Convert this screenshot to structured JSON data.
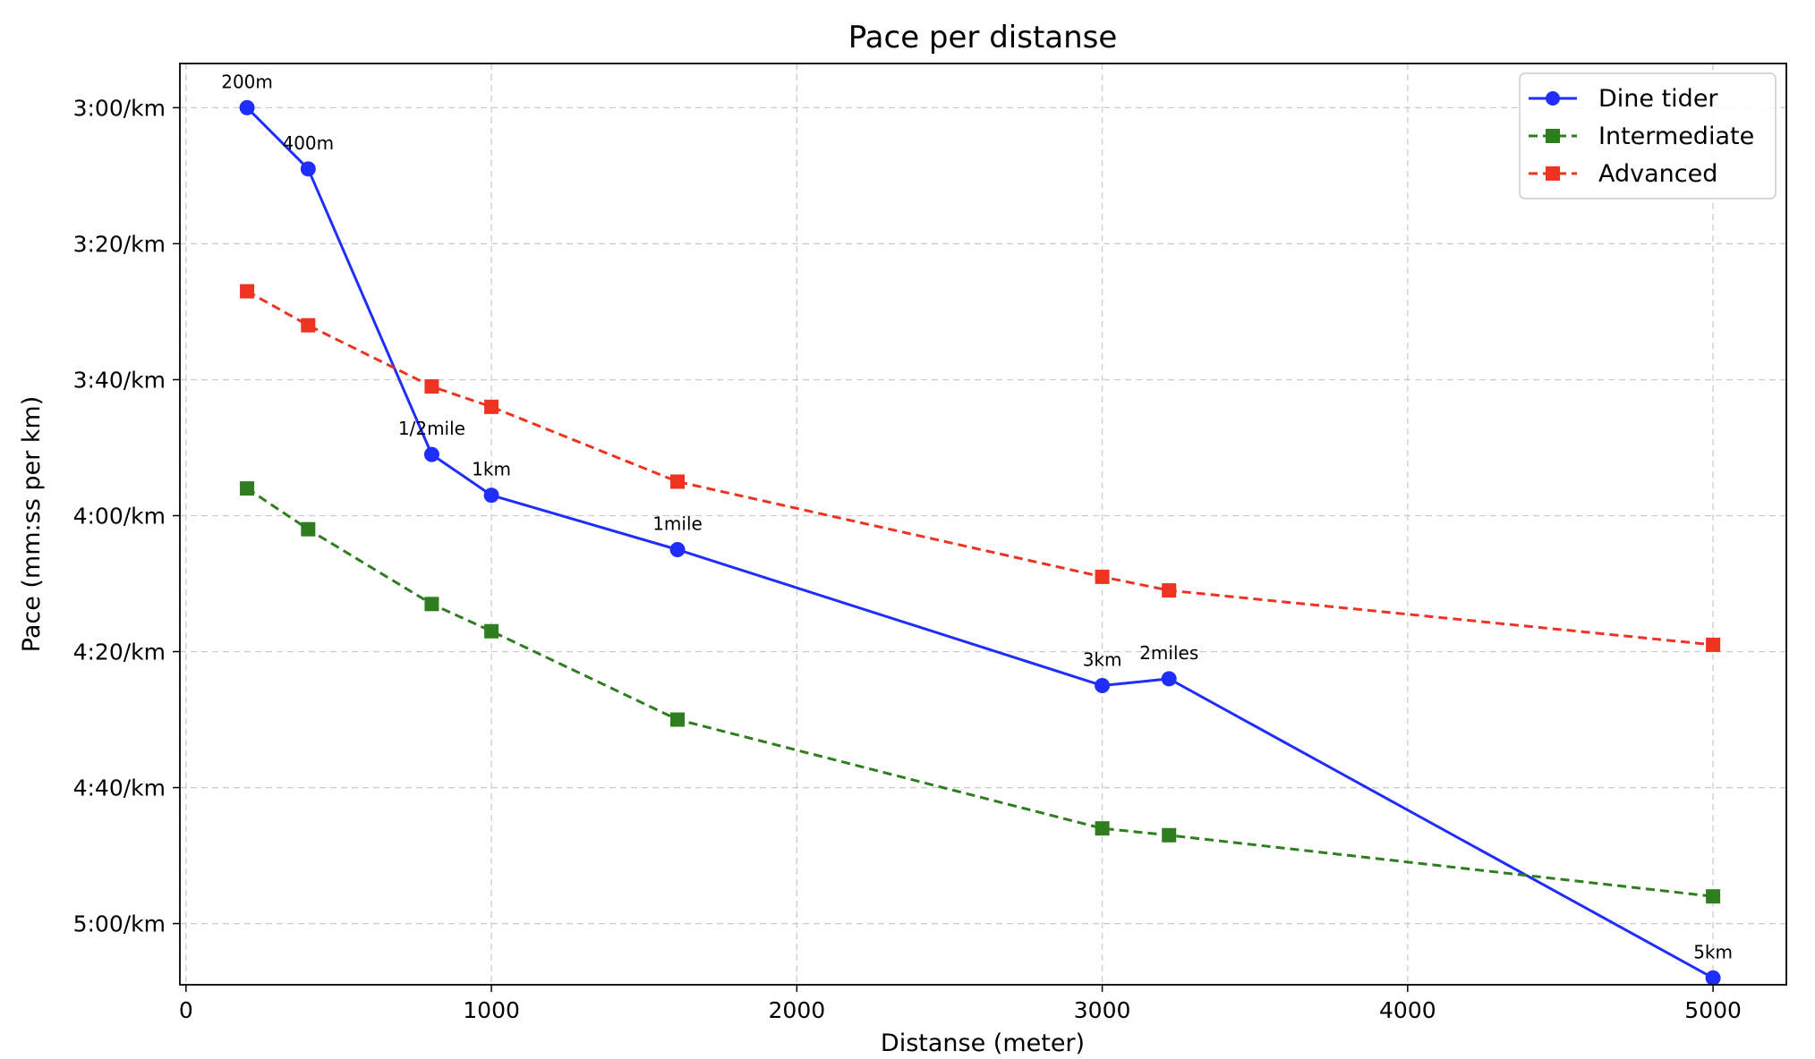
{
  "chart_data": {
    "type": "line",
    "title": "Pace per distanse",
    "xlabel": "Distanse (meter)",
    "ylabel": "Pace (mm:ss per km)",
    "xlim": [
      -20,
      5240
    ],
    "ylim_seconds": [
      173.5,
      309
    ],
    "y_inverted": true,
    "x_ticks": [
      0,
      1000,
      2000,
      3000,
      4000,
      5000
    ],
    "x_tick_labels": [
      "0",
      "1000",
      "2000",
      "3000",
      "4000",
      "5000"
    ],
    "y_ticks_seconds": [
      180,
      200,
      220,
      240,
      260,
      280,
      300
    ],
    "y_tick_labels": [
      "3:00/km",
      "3:20/km",
      "3:40/km",
      "4:00/km",
      "4:20/km",
      "4:40/km",
      "5:00/km"
    ],
    "grid": true,
    "legend_position": "top-right",
    "x": [
      200,
      400,
      804.67,
      1000,
      1609.34,
      3000,
      3218.69,
      5000
    ],
    "point_labels": [
      "200m",
      "400m",
      "1/2mile",
      "1km",
      "1mile",
      "3km",
      "2miles",
      "5km"
    ],
    "series": [
      {
        "name": "Dine tider",
        "color": "#1f2eff",
        "line_style": "solid",
        "marker": "circle",
        "pace_labels": [
          "3:00/km",
          "3:09/km",
          "3:51/km",
          "3:57/km",
          "4:05/km",
          "4:25/km",
          "4:24/km",
          "5:08/km"
        ],
        "values_seconds": [
          180,
          189,
          231,
          237,
          245,
          265,
          264,
          308
        ]
      },
      {
        "name": "Intermediate",
        "color": "#2e7d1e",
        "line_style": "dashed",
        "marker": "square",
        "pace_labels": [
          "3:56/km",
          "4:02/km",
          "4:13/km",
          "4:17/km",
          "4:30/km",
          "4:46/km",
          "4:47/km",
          "4:56/km"
        ],
        "values_seconds": [
          236,
          242,
          253,
          257,
          270,
          286,
          287,
          296
        ]
      },
      {
        "name": "Advanced",
        "color": "#ee3322",
        "line_style": "dashed",
        "marker": "square",
        "pace_labels": [
          "3:27/km",
          "3:32/km",
          "3:41/km",
          "3:44/km",
          "3:55/km",
          "4:09/km",
          "4:11/km",
          "4:19/km"
        ],
        "values_seconds": [
          207,
          212,
          221,
          224,
          235,
          249,
          251,
          259
        ]
      }
    ]
  }
}
